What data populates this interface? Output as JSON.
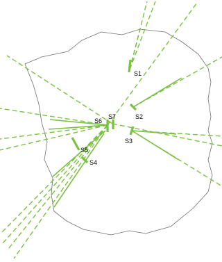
{
  "colors": {
    "line": "#7ac142",
    "outline": "#6e6e6e",
    "text": "#000000"
  },
  "stations": [
    {
      "id": "s1",
      "label": "S1"
    },
    {
      "id": "s2",
      "label": "S2"
    },
    {
      "id": "s3",
      "label": "S3"
    },
    {
      "id": "s4",
      "label": "S4"
    },
    {
      "id": "s5",
      "label": "S5"
    },
    {
      "id": "s6",
      "label": "S6"
    },
    {
      "id": "s7",
      "label": "S7"
    }
  ]
}
